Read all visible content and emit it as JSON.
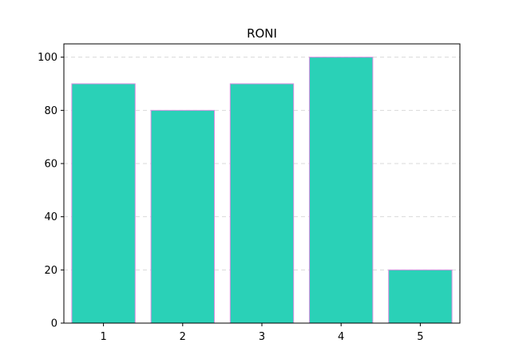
{
  "chart_data": {
    "type": "bar",
    "title": "RONI",
    "xlabel": "",
    "ylabel": "",
    "categories": [
      "1",
      "2",
      "3",
      "4",
      "5"
    ],
    "values": [
      90,
      80,
      90,
      100,
      20
    ],
    "ylim": [
      0,
      105
    ],
    "yticks": [
      "0",
      "20",
      "40",
      "60",
      "80",
      "100"
    ],
    "grid": {
      "enabled": true,
      "axis": "y",
      "style": "dashed"
    },
    "colors": {
      "bar_fill": "#2ad1b7",
      "bar_edge": "#d68ee0",
      "grid": "#d9d9d9",
      "axis": "#000000"
    }
  }
}
